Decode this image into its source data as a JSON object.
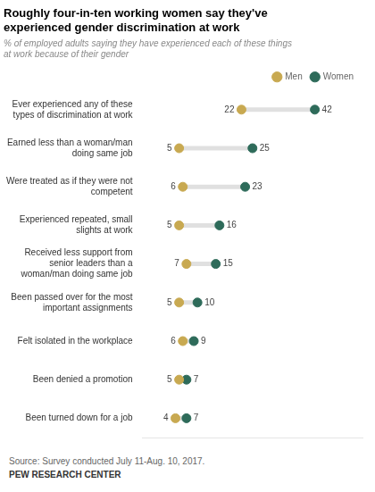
{
  "chart_data": {
    "type": "dumbbell",
    "title": "Roughly four-in-ten working women say they've\nexperienced gender discrimination at work",
    "subtitle": "% of employed adults saying they have experienced each of these things\nat work because of their gender",
    "annotations": [
      "Source: Survey conducted July 11-Aug. 10, 2017.",
      "PEW RESEARCH CENTER"
    ],
    "categories": [
      "Ever experienced any of these\ntypes of discrimination at work",
      "Earned less than a woman/man\ndoing same job",
      "Were treated as if they were not\ncompetent",
      "Experienced repeated, small\nslights at work",
      "Received less support from\nsenior leaders than a\nwoman/man doing same job",
      "Been passed over for the most\nimportant assignments",
      "Felt isolated in the workplace",
      "Been denied a promotion",
      "Been turned down for a job"
    ],
    "series": [
      {
        "name": "Men",
        "color": "#C8A951",
        "values": [
          22,
          5,
          6,
          5,
          7,
          5,
          6,
          5,
          4
        ]
      },
      {
        "name": "Women",
        "color": "#2E6B5A",
        "values": [
          42,
          25,
          23,
          16,
          15,
          10,
          9,
          7,
          7
        ]
      }
    ],
    "xlim": [
      -5,
      55
    ],
    "orientation": "horizontal",
    "data_labels": true,
    "tick_labels": "y",
    "grid": false,
    "legend": "top"
  }
}
